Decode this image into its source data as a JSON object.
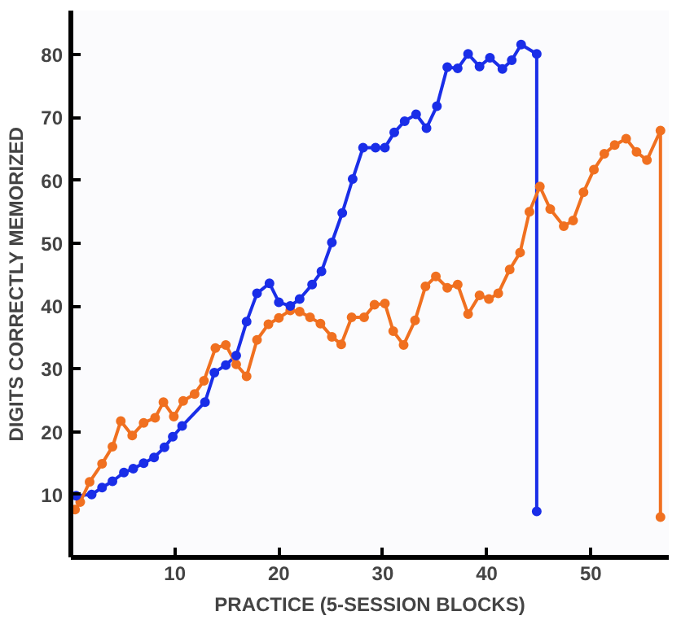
{
  "chart_data": {
    "type": "line",
    "xlabel": "PRACTICE (5-SESSION BLOCKS)",
    "ylabel": "DIGITS CORRECTLY MEMORIZED",
    "xlim": [
      0,
      57.5
    ],
    "ylim": [
      0,
      87
    ],
    "xticks": [
      10,
      20,
      30,
      40,
      50
    ],
    "yticks": [
      10,
      20,
      30,
      40,
      50,
      60,
      70,
      80
    ],
    "grid": false,
    "marker": "circle",
    "line_style": "solid",
    "series": [
      {
        "color": "#1a2ee8",
        "x": [
          0.5,
          2,
          3,
          4,
          5.1,
          6,
          7,
          8,
          9,
          9.8,
          10.7,
          12.9,
          13.8,
          14.9,
          15.9,
          16.9,
          17.9,
          19.1,
          20,
          21.1,
          22,
          23.2,
          24.1,
          25.1,
          26.1,
          27.1,
          28.1,
          29.3,
          30.2,
          31.1,
          32.1,
          33.2,
          34.2,
          35.2,
          36.2,
          37.2,
          38.2,
          39.3,
          40.3,
          41.5,
          42.4,
          43.3,
          44.8,
          44.8
        ],
        "values": [
          9.8,
          10.0,
          11.1,
          12.1,
          13.5,
          14.1,
          15.0,
          15.9,
          17.5,
          19.2,
          20.9,
          24.7,
          29.4,
          30.6,
          32.1,
          37.5,
          42.0,
          43.6,
          40.6,
          40.0,
          41.1,
          43.4,
          45.5,
          50.1,
          54.8,
          60.2,
          65.2,
          65.2,
          65.2,
          67.6,
          69.4,
          70.5,
          68.3,
          71.8,
          78.0,
          77.8,
          80.1,
          78.1,
          79.5,
          77.7,
          79.1,
          81.6,
          80.1,
          7.3
        ]
      },
      {
        "color": "#f07020",
        "x": [
          0.4,
          0.9,
          1.8,
          3,
          4,
          4.8,
          5.9,
          7,
          8.1,
          8.9,
          9.9,
          10.8,
          11.9,
          12.8,
          13.9,
          14.9,
          15.9,
          16.9,
          17.9,
          19,
          20,
          21.1,
          22,
          23,
          24,
          25.1,
          26,
          27,
          28.2,
          29.2,
          30.2,
          31,
          32,
          33.1,
          34.1,
          35.1,
          36.2,
          37.2,
          38.2,
          39.3,
          40.2,
          41.1,
          42.2,
          43.2,
          44.1,
          45.1,
          46.1,
          47.4,
          48.3,
          49.3,
          50.3,
          51.3,
          52.3,
          53.4,
          54.4,
          55.4,
          56.7,
          56.7
        ],
        "values": [
          7.6,
          8.8,
          12.0,
          14.9,
          17.6,
          21.7,
          19.4,
          21.4,
          22.2,
          24.7,
          22.4,
          24.9,
          26.0,
          28.1,
          33.3,
          33.8,
          30.7,
          28.8,
          34.6,
          37.1,
          38.1,
          39.3,
          39.1,
          38.2,
          37.2,
          35.1,
          33.9,
          38.2,
          38.2,
          40.2,
          40.4,
          36.0,
          33.8,
          37.7,
          43.1,
          44.7,
          42.9,
          43.4,
          38.7,
          41.7,
          41.1,
          42.0,
          45.8,
          48.5,
          55.0,
          59.0,
          55.4,
          52.7,
          53.6,
          58.1,
          61.7,
          64.2,
          65.6,
          66.6,
          64.5,
          63.2,
          67.9,
          6.4
        ]
      }
    ]
  }
}
